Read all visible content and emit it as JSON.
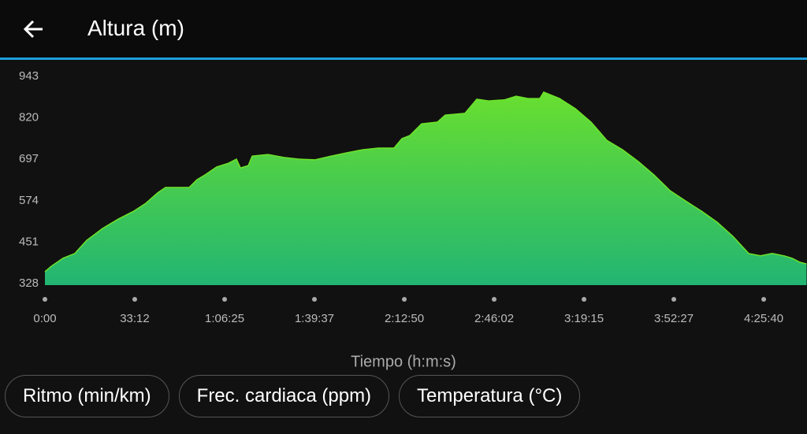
{
  "header": {
    "title": "Altura (m)"
  },
  "chart_data": {
    "type": "area",
    "x_label": "Tiempo (h:m:s)",
    "x": [
      0,
      140,
      402,
      664,
      926,
      1276,
      1625,
      1975,
      2237,
      2499,
      2674,
      3198,
      3373,
      3548,
      3810,
      4072,
      4247,
      4335,
      4510,
      4597,
      4947,
      5296,
      5646,
      5995,
      6344,
      6694,
      7043,
      7393,
      7742,
      7917,
      8091,
      8353,
      8703,
      8878,
      9315,
      9577,
      9839,
      10188,
      10450,
      10713,
      10975,
      11062,
      11412,
      11761,
      12111,
      12460,
      12810,
      13159,
      13509,
      13858,
      14208,
      14557,
      14907,
      15256,
      15606,
      15868,
      16130,
      16393,
      16567,
      16742,
      16890
    ],
    "values": [
      368,
      384,
      408,
      422,
      461,
      496,
      524,
      548,
      571,
      602,
      618,
      618,
      641,
      655,
      679,
      690,
      702,
      676,
      683,
      711,
      716,
      707,
      702,
      700,
      711,
      721,
      730,
      735,
      735,
      763,
      772,
      807,
      812,
      833,
      838,
      880,
      875,
      878,
      889,
      882,
      882,
      901,
      882,
      852,
      812,
      758,
      730,
      695,
      655,
      609,
      578,
      548,
      515,
      473,
      422,
      415,
      422,
      415,
      408,
      396,
      391
    ],
    "color_top": "#6ee22a",
    "color_bottom": "#22b573",
    "xlim": [
      0,
      16900
    ],
    "xticks": [
      {
        "value": 0,
        "label": "0:00"
      },
      {
        "value": 1992,
        "label": "33:12"
      },
      {
        "value": 3985,
        "label": "1:06:25"
      },
      {
        "value": 5977,
        "label": "1:39:37"
      },
      {
        "value": 7970,
        "label": "2:12:50"
      },
      {
        "value": 9962,
        "label": "2:46:02"
      },
      {
        "value": 11955,
        "label": "3:19:15"
      },
      {
        "value": 13947,
        "label": "3:52:27"
      },
      {
        "value": 15940,
        "label": "4:25:40"
      }
    ],
    "ylim": [
      328,
      943
    ],
    "yticks": [
      328,
      451,
      574,
      697,
      820,
      943
    ]
  },
  "buttons": [
    "Ritmo (min/km)",
    "Frec. cardiaca (ppm)",
    "Temperatura (°C)"
  ]
}
